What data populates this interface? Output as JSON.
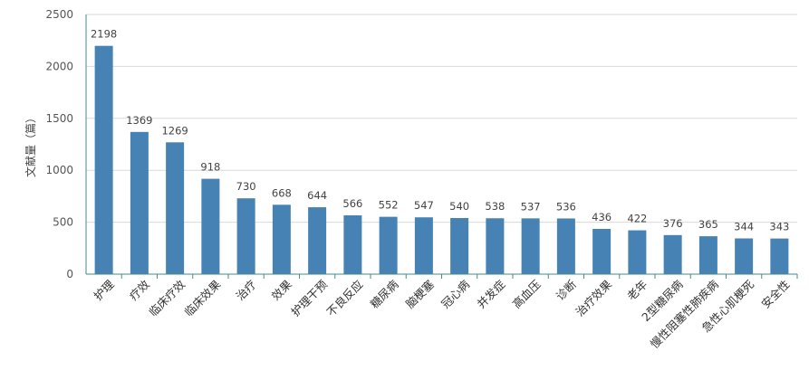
{
  "chart_data": {
    "type": "bar",
    "title": "",
    "xlabel": "",
    "ylabel": "文献量（篇）",
    "ylim": [
      0,
      2500
    ],
    "yticks": [
      0,
      500,
      1000,
      1500,
      2000,
      2500
    ],
    "grid": true,
    "bar_color": "#4682b4",
    "categories": [
      "护理",
      "疗效",
      "临床疗效",
      "临床效果",
      "治疗",
      "效果",
      "护理干预",
      "不良反应",
      "糖尿病",
      "脑梗塞",
      "冠心病",
      "并发症",
      "高血压",
      "诊断",
      "治疗效果",
      "老年",
      "2型糖尿病",
      "慢性阻塞性肺疾病",
      "急性心肌梗死",
      "安全性"
    ],
    "values": [
      2198,
      1369,
      1269,
      918,
      730,
      668,
      644,
      566,
      552,
      547,
      540,
      538,
      537,
      536,
      436,
      422,
      376,
      365,
      344,
      343
    ]
  }
}
